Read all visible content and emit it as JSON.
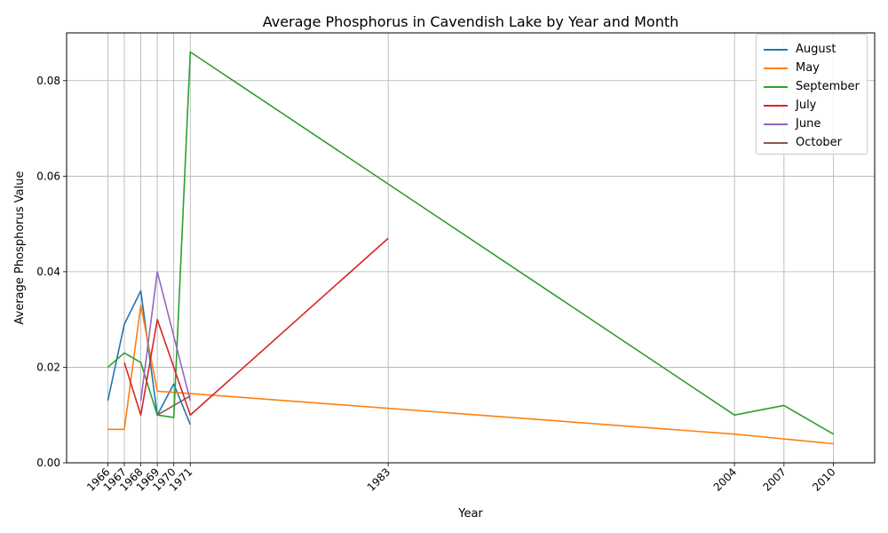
{
  "chart_data": {
    "type": "line",
    "title": "Average Phosphorus in Cavendish Lake by Year and Month",
    "xlabel": "Year",
    "ylabel": "Average Phosphorus Value",
    "xlim": [
      1963.5,
      2012.5
    ],
    "ylim": [
      0,
      0.09
    ],
    "x_ticks": [
      1966,
      1967,
      1968,
      1969,
      1970,
      1971,
      1983,
      2004,
      2007,
      2010
    ],
    "y_ticks": [
      0.0,
      0.02,
      0.04,
      0.06,
      0.08
    ],
    "y_tick_labels": [
      "0.00",
      "0.02",
      "0.04",
      "0.06",
      "0.08"
    ],
    "grid": true,
    "legend_position": "upper right",
    "series": [
      {
        "name": "August",
        "color": "#1f77b4",
        "x": [
          1966,
          1967,
          1968,
          1969,
          1970,
          1971
        ],
        "values": [
          0.013,
          0.029,
          0.036,
          0.01,
          0.0165,
          0.008
        ]
      },
      {
        "name": "May",
        "color": "#ff7f0e",
        "x": [
          1966,
          1967,
          1968,
          1969,
          1971,
          2004,
          2007,
          2010
        ],
        "values": [
          0.007,
          0.007,
          0.033,
          0.015,
          0.0145,
          0.006,
          0.005,
          0.004
        ]
      },
      {
        "name": "September",
        "color": "#2ca02c",
        "x": [
          1966,
          1967,
          1968,
          1969,
          1970,
          1971,
          2004,
          2007,
          2010
        ],
        "values": [
          0.02,
          0.023,
          0.021,
          0.01,
          0.0095,
          0.086,
          0.01,
          0.012,
          0.006
        ]
      },
      {
        "name": "July",
        "color": "#d62728",
        "x": [
          1967,
          1968,
          1969,
          1971,
          1983
        ],
        "values": [
          0.021,
          0.01,
          0.03,
          0.01,
          0.047
        ]
      },
      {
        "name": "June",
        "color": "#9467bd",
        "x": [
          1968,
          1969,
          1971
        ],
        "values": [
          0.013,
          0.04,
          0.013
        ]
      },
      {
        "name": "October",
        "color": "#8c564b",
        "x": [
          1969,
          1971
        ],
        "values": [
          0.01,
          0.014
        ]
      }
    ]
  }
}
